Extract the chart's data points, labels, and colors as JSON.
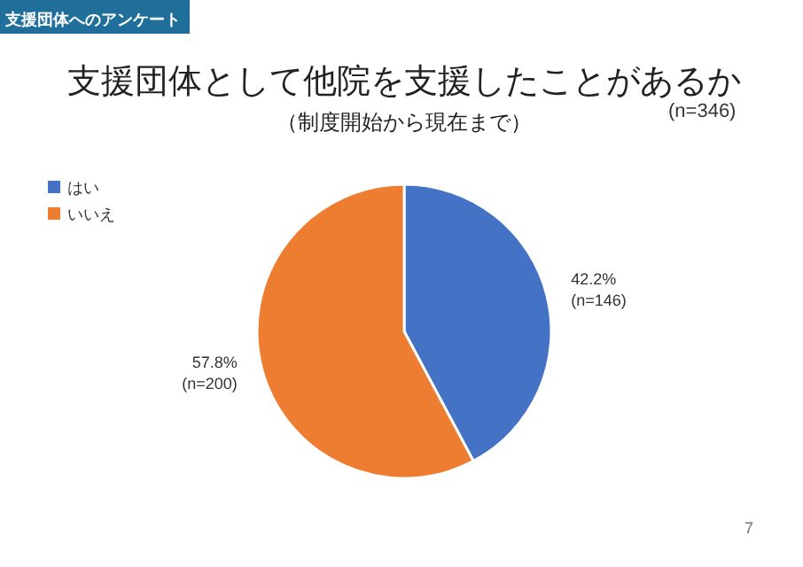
{
  "chart_data": {
    "type": "pie",
    "title": "支援団体として他院を支援したことがあるか",
    "subtitle": "（制度開始から現在まで）",
    "categories": [
      "はい",
      "いいえ"
    ],
    "values": [
      146,
      200
    ],
    "colors": [
      "#4472c4",
      "#ed7d31"
    ],
    "value_labels": [
      "42.2%\n(n=146)",
      "57.8%\n(n=200)"
    ],
    "legend": "top left",
    "annotations": [
      "支援団体へのアンケート",
      "(n=346)",
      "7"
    ]
  }
}
